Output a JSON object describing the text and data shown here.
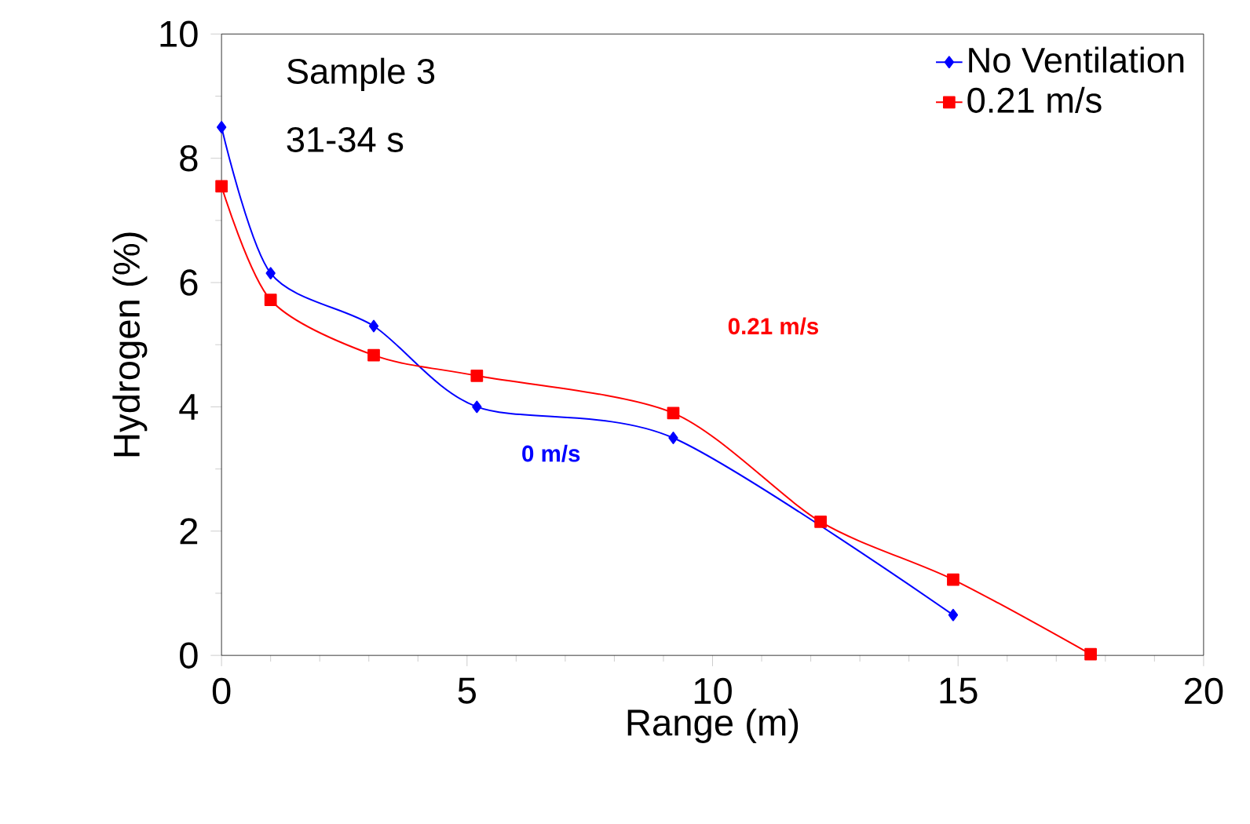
{
  "chart_data": {
    "type": "line",
    "xlabel": "Range (m)",
    "ylabel": "Hydrogen (%)",
    "xlim": [
      0,
      20
    ],
    "ylim": [
      0,
      10
    ],
    "xticks": [
      0,
      5,
      10,
      15,
      20
    ],
    "yticks": [
      0,
      2,
      4,
      6,
      8,
      10
    ],
    "grid": false,
    "legend": "top right",
    "line_style": "solid",
    "series": [
      {
        "name": "No Ventilation",
        "color": "#0000ff",
        "marker": "diamond",
        "x": [
          0,
          1.0,
          3.1,
          5.2,
          9.2,
          14.9
        ],
        "values": [
          8.5,
          6.15,
          5.3,
          4.0,
          3.5,
          0.65
        ]
      },
      {
        "name": "0.21 m/s",
        "color": "#ff0000",
        "marker": "square",
        "x": [
          0,
          1.0,
          3.1,
          5.2,
          9.2,
          12.2,
          14.9,
          17.7
        ],
        "values": [
          7.55,
          5.72,
          4.83,
          4.5,
          3.9,
          2.15,
          1.22,
          0.02
        ]
      }
    ],
    "annotations": [
      "Sample 3",
      "31-34 s",
      "0.21 m/s",
      "0 m/s"
    ]
  }
}
